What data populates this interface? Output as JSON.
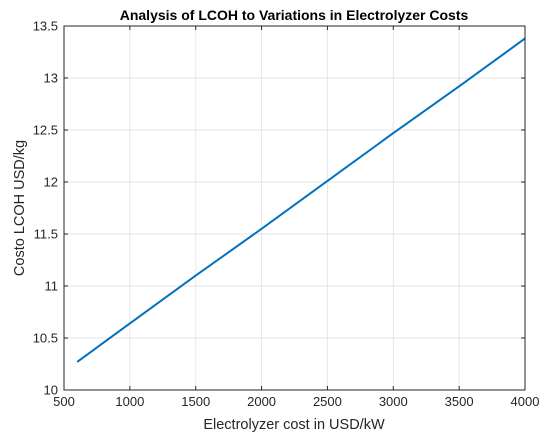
{
  "chart_data": {
    "type": "line",
    "title": "Analysis of LCOH to Variations in Electrolyzer Costs",
    "xlabel": "Electrolyzer cost in USD/kW",
    "ylabel": "Costo LCOH USD/kg",
    "xlim": [
      500,
      4000
    ],
    "ylim": [
      10,
      13.5
    ],
    "xticks": [
      500,
      1000,
      1500,
      2000,
      2500,
      3000,
      3500,
      4000
    ],
    "xtick_labels": [
      "500",
      "1000",
      "1500",
      "2000",
      "2500",
      "3000",
      "3500",
      "4000"
    ],
    "yticks": [
      10,
      10.5,
      11,
      11.5,
      12,
      12.5,
      13,
      13.5
    ],
    "ytick_labels": [
      "10",
      "10.5",
      "11",
      "11.5",
      "12",
      "12.5",
      "13",
      "13.5"
    ],
    "grid": true,
    "series": [
      {
        "x": [
          600,
          1000,
          1500,
          2000,
          2500,
          3000,
          3500,
          4000
        ],
        "y": [
          10.27,
          10.64,
          11.1,
          11.55,
          12.01,
          12.47,
          12.92,
          13.38
        ]
      }
    ]
  },
  "colors": {
    "line": "#0072BD",
    "grid": "#e6e6e6",
    "axis": "#262626",
    "title": "#000000"
  }
}
